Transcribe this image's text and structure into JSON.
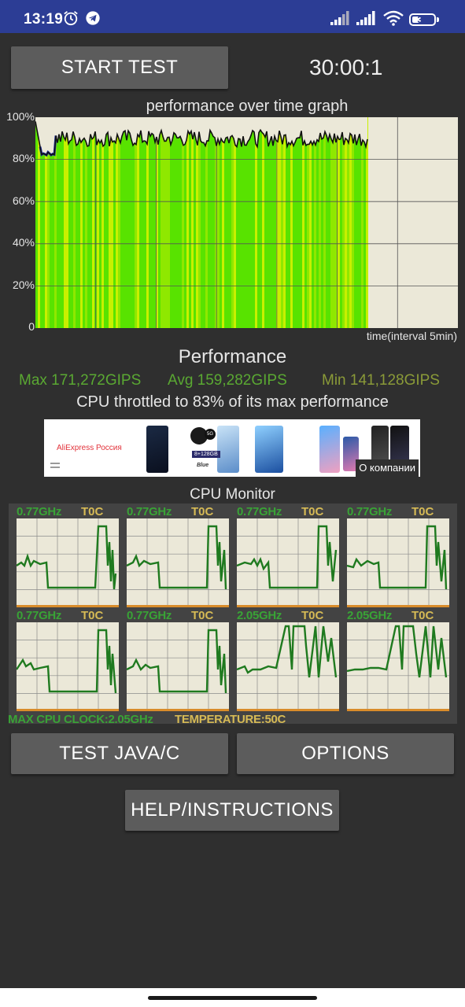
{
  "status_bar": {
    "time": "13:19",
    "battery": "39",
    "icons": [
      "alarm-icon",
      "telegram-icon",
      "signal-icon",
      "signal-icon",
      "wifi-icon",
      "battery-icon"
    ]
  },
  "toolbar": {
    "start_label": "START TEST",
    "timer": "30:00:1"
  },
  "graph": {
    "title": "performance over time graph",
    "y_ticks": [
      "100%",
      "80%",
      "60%",
      "40%",
      "20%",
      "0"
    ],
    "x_label": "time(interval 5min)",
    "colors": {
      "background": "#ebe8d8",
      "fill_green": "#58e300",
      "fill_yellow": "#c8f000",
      "line": "#111111",
      "blue_line": "#2233aa"
    },
    "progress_fraction": 0.786,
    "typical_level_percent": 90,
    "minimum_level_percent": 82
  },
  "performance": {
    "title": "Performance",
    "max": "Max 171,272GIPS",
    "avg": "Avg 159,282GIPS",
    "min": "Min 141,128GIPS",
    "throttle": "CPU throttled to 83% of its max performance",
    "colors": {
      "stat": "#5aa832"
    }
  },
  "ad": {
    "brand": "AliExpress Россия",
    "badge": "О компании",
    "captions": [
      "8+128GB",
      "Blue",
      "5G"
    ]
  },
  "cpu_monitor": {
    "title": "CPU Monitor",
    "cores": [
      {
        "freq": "0.77GHz",
        "temp": "T0C"
      },
      {
        "freq": "0.77GHz",
        "temp": "T0C"
      },
      {
        "freq": "0.77GHz",
        "temp": "T0C"
      },
      {
        "freq": "0.77GHz",
        "temp": "T0C"
      },
      {
        "freq": "0.77GHz",
        "temp": "T0C"
      },
      {
        "freq": "0.77GHz",
        "temp": "T0C"
      },
      {
        "freq": "2.05GHz",
        "temp": "T0C"
      },
      {
        "freq": "2.05GHz",
        "temp": "T0C"
      }
    ],
    "max_clock": "MAX CPU CLOCK:2.05GHz",
    "temperature": "TEMPERATURE:50C",
    "colors": {
      "freq": "#39a336",
      "temp": "#d6ba55",
      "line": "#1f7a1f"
    }
  },
  "buttons": {
    "test_java": "TEST JAVA/C",
    "options": "OPTIONS",
    "help": "HELP/INSTRUCTIONS"
  }
}
